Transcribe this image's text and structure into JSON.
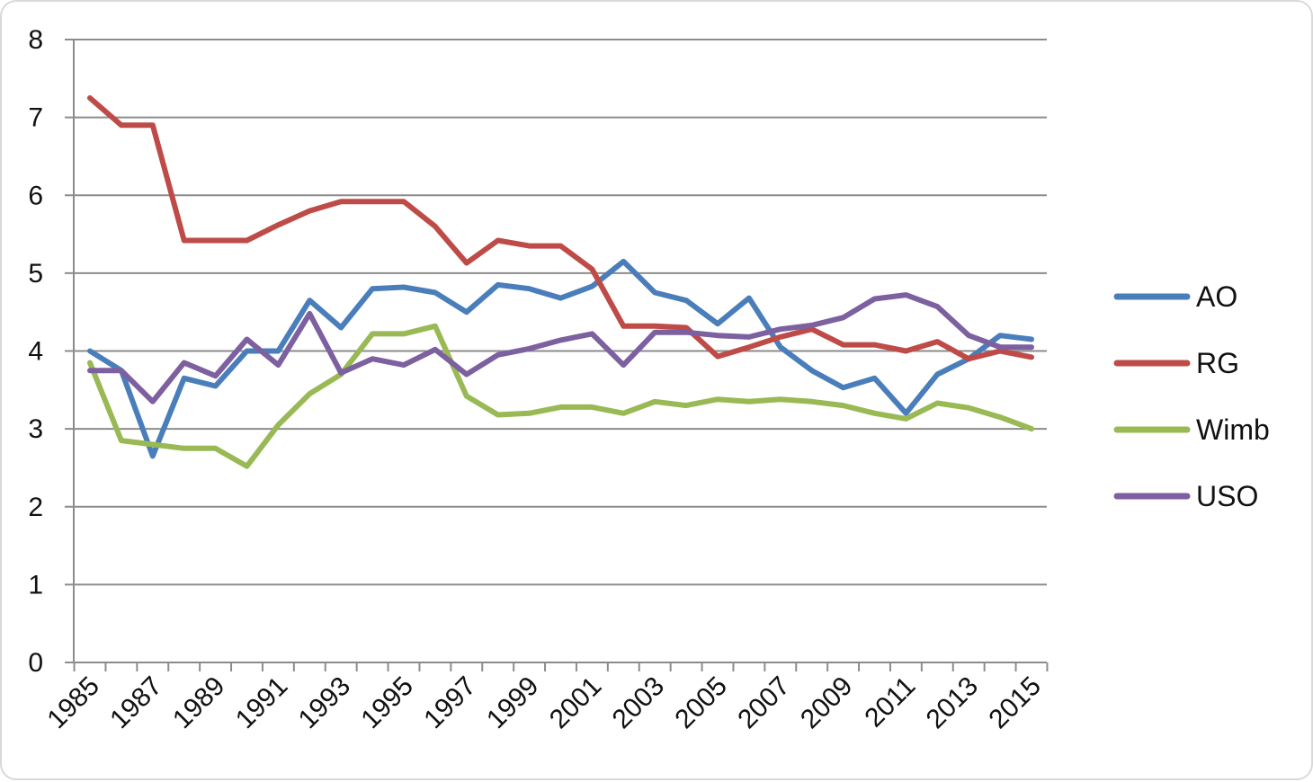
{
  "chart_data": {
    "type": "line",
    "title": "",
    "xlabel": "",
    "ylabel": "",
    "x": [
      1985,
      1986,
      1987,
      1988,
      1989,
      1990,
      1991,
      1992,
      1993,
      1994,
      1995,
      1996,
      1997,
      1998,
      1999,
      2000,
      2001,
      2002,
      2003,
      2004,
      2005,
      2006,
      2007,
      2008,
      2009,
      2010,
      2011,
      2012,
      2013,
      2014,
      2015
    ],
    "x_tick_labels": [
      "1985",
      "1987",
      "1989",
      "1991",
      "1993",
      "1995",
      "1997",
      "1999",
      "2001",
      "2003",
      "2005",
      "2007",
      "2009",
      "2011",
      "2013",
      "2015"
    ],
    "y_tick_labels": [
      "0",
      "1",
      "2",
      "3",
      "4",
      "5",
      "6",
      "7",
      "8"
    ],
    "ylim": [
      0,
      8
    ],
    "grid": true,
    "legend_position": "right",
    "series": [
      {
        "name": "AO",
        "color": "#4a7ebb",
        "values": [
          4.0,
          3.75,
          2.65,
          3.65,
          3.55,
          4.0,
          4.0,
          4.65,
          4.3,
          4.8,
          4.82,
          4.75,
          4.5,
          4.85,
          4.8,
          4.68,
          4.83,
          5.15,
          4.75,
          4.65,
          4.35,
          4.68,
          4.05,
          3.75,
          3.53,
          3.65,
          3.2,
          3.7,
          3.9,
          4.2,
          4.15
        ]
      },
      {
        "name": "RG",
        "color": "#be4b48",
        "values": [
          7.25,
          6.9,
          6.9,
          5.42,
          5.42,
          5.42,
          5.62,
          5.8,
          5.92,
          5.92,
          5.92,
          5.6,
          5.13,
          5.42,
          5.35,
          5.35,
          5.05,
          4.32,
          4.32,
          4.3,
          3.93,
          4.05,
          4.18,
          4.28,
          4.08,
          4.08,
          4.0,
          4.12,
          3.9,
          4.0,
          3.92
        ]
      },
      {
        "name": "Wimb",
        "color": "#98b954",
        "values": [
          3.85,
          2.85,
          2.8,
          2.75,
          2.75,
          2.52,
          3.05,
          3.45,
          3.7,
          4.22,
          4.22,
          4.32,
          3.42,
          3.18,
          3.2,
          3.28,
          3.28,
          3.2,
          3.35,
          3.3,
          3.38,
          3.35,
          3.38,
          3.35,
          3.3,
          3.2,
          3.13,
          3.33,
          3.27,
          3.15,
          3.0
        ]
      },
      {
        "name": "USO",
        "color": "#7d60a0",
        "values": [
          3.75,
          3.75,
          3.35,
          3.85,
          3.68,
          4.15,
          3.82,
          4.48,
          3.72,
          3.9,
          3.82,
          4.02,
          3.7,
          3.95,
          4.03,
          4.14,
          4.22,
          3.82,
          4.24,
          4.24,
          4.2,
          4.18,
          4.28,
          4.33,
          4.43,
          4.67,
          4.72,
          4.57,
          4.2,
          4.05,
          4.05
        ]
      }
    ]
  }
}
